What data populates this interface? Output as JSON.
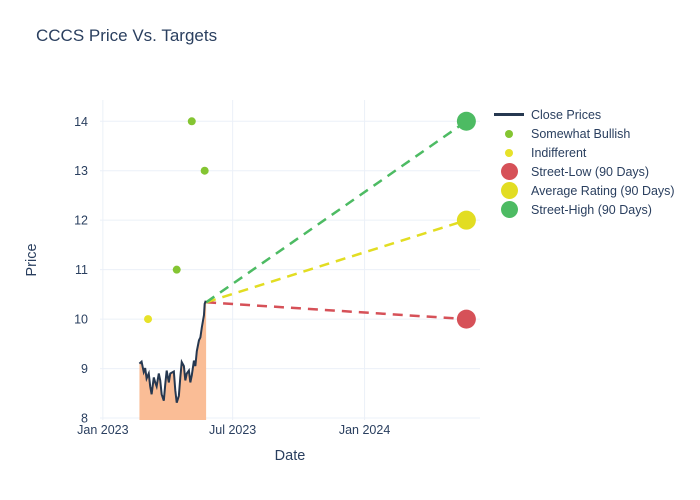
{
  "page": {
    "background": "#ffffff"
  },
  "chart_data": {
    "type": "line",
    "title": "CCCS Price Vs. Targets",
    "xlabel": "Date",
    "ylabel": "Price",
    "font_color": "#2a3f5f",
    "grid_color": "#ebf0f8",
    "legend_position": "right",
    "x_range": [
      "2022-12-28",
      "2024-06-10"
    ],
    "y_range": [
      7.96,
      14.43
    ],
    "y_ticks": [
      8,
      9,
      10,
      11,
      12,
      13,
      14
    ],
    "x_ticks": [
      {
        "date": "2023-01-01",
        "label": "Jan 2023"
      },
      {
        "date": "2023-07-01",
        "label": "Jul 2023"
      },
      {
        "date": "2024-01-01",
        "label": "Jan 2024"
      }
    ],
    "close_prices": {
      "name": "Close Prices",
      "line_color": "#263850",
      "fill_color": "#fabd96",
      "points": [
        [
          "2023-02-21",
          9.1
        ],
        [
          "2023-02-24",
          9.14
        ],
        [
          "2023-02-27",
          8.93
        ],
        [
          "2023-03-01",
          9.01
        ],
        [
          "2023-03-03",
          8.8
        ],
        [
          "2023-03-06",
          8.9
        ],
        [
          "2023-03-08",
          8.64
        ],
        [
          "2023-03-10",
          8.48
        ],
        [
          "2023-03-13",
          8.82
        ],
        [
          "2023-03-15",
          8.72
        ],
        [
          "2023-03-17",
          8.64
        ],
        [
          "2023-03-20",
          8.9
        ],
        [
          "2023-03-22",
          8.76
        ],
        [
          "2023-03-24",
          8.48
        ],
        [
          "2023-03-27",
          8.35
        ],
        [
          "2023-03-29",
          8.68
        ],
        [
          "2023-03-31",
          8.96
        ],
        [
          "2023-04-03",
          8.72
        ],
        [
          "2023-04-05",
          8.9
        ],
        [
          "2023-04-10",
          8.94
        ],
        [
          "2023-04-12",
          8.56
        ],
        [
          "2023-04-14",
          8.31
        ],
        [
          "2023-04-17",
          8.45
        ],
        [
          "2023-04-19",
          8.82
        ],
        [
          "2023-04-21",
          9.13
        ],
        [
          "2023-04-24",
          9.05
        ],
        [
          "2023-04-26",
          8.76
        ],
        [
          "2023-04-28",
          8.9
        ],
        [
          "2023-05-01",
          8.96
        ],
        [
          "2023-05-03",
          8.72
        ],
        [
          "2023-05-05",
          8.86
        ],
        [
          "2023-05-08",
          9.16
        ],
        [
          "2023-05-10",
          9.05
        ],
        [
          "2023-05-12",
          9.35
        ],
        [
          "2023-05-15",
          9.57
        ],
        [
          "2023-05-17",
          9.63
        ],
        [
          "2023-05-19",
          9.83
        ],
        [
          "2023-05-22",
          10.08
        ],
        [
          "2023-05-23",
          10.31
        ],
        [
          "2023-05-24",
          10.35
        ],
        [
          "2023-05-25",
          10.34
        ]
      ]
    },
    "ratings": [
      {
        "name": "Somewhat Bullish",
        "color": "#84c532",
        "points": [
          [
            "2023-04-14",
            11
          ],
          [
            "2023-05-05",
            14
          ],
          [
            "2023-05-23",
            13
          ]
        ]
      },
      {
        "name": "Indifferent",
        "color": "#e7e229",
        "points": [
          [
            "2023-03-05",
            10
          ]
        ]
      }
    ],
    "targets": [
      {
        "name": "Street-Low (90 Days)",
        "color": "#d65158",
        "from": [
          "2023-05-25",
          10.34
        ],
        "to": [
          "2024-05-22",
          10
        ]
      },
      {
        "name": "Average Rating (90 Days)",
        "color": "#e2dd22",
        "from": [
          "2023-05-25",
          10.34
        ],
        "to": [
          "2024-05-22",
          12
        ]
      },
      {
        "name": "Street-High (90 Days)",
        "color": "#4dbb63",
        "from": [
          "2023-05-25",
          10.34
        ],
        "to": [
          "2024-05-22",
          14
        ]
      }
    ],
    "legend": [
      {
        "label": "Close Prices",
        "swatch": "line",
        "color": "#263850"
      },
      {
        "label": "Somewhat Bullish",
        "swatch": "dot",
        "color": "#84c532"
      },
      {
        "label": "Indifferent",
        "swatch": "dot",
        "color": "#e7e229"
      },
      {
        "label": "Street-Low (90 Days)",
        "swatch": "circle",
        "color": "#d65158"
      },
      {
        "label": "Average Rating (90 Days)",
        "swatch": "circle",
        "color": "#e2dd22"
      },
      {
        "label": "Street-High (90 Days)",
        "swatch": "circle",
        "color": "#4dbb63"
      }
    ]
  }
}
